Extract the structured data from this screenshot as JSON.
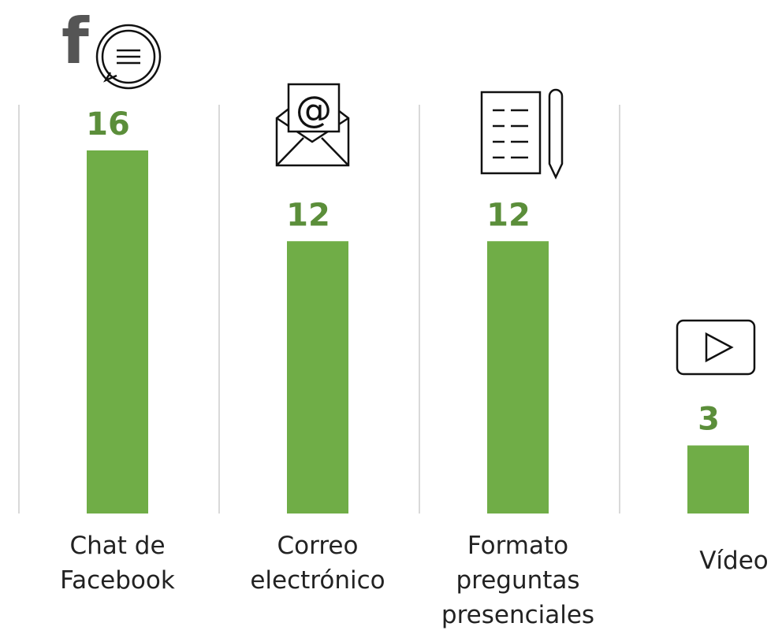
{
  "chart_data": {
    "type": "bar",
    "categories": [
      "Chat de Facebook",
      "Correo electrónico",
      "Formato preguntas presenciales",
      "Vídeo"
    ],
    "values": [
      16,
      12,
      12,
      3
    ],
    "color": "#70ad47",
    "label_color": "#5b8e3a"
  }
}
